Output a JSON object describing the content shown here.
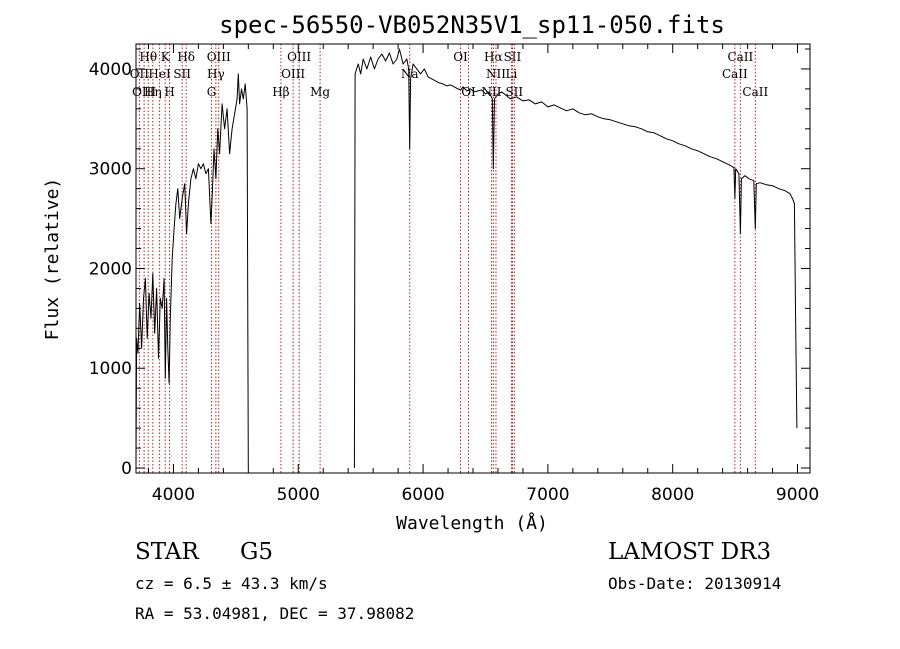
{
  "chart_data": {
    "type": "line",
    "title": "spec-56550-VB052N35V1_sp11-050.fits",
    "xlabel": "Wavelength (Å)",
    "ylabel": "Flux (relative)",
    "xlim": [
      3700,
      9100
    ],
    "ylim": [
      -50,
      4250
    ],
    "xticks": [
      4000,
      5000,
      6000,
      7000,
      8000,
      9000
    ],
    "yticks": [
      0,
      1000,
      2000,
      3000,
      4000
    ],
    "series": [
      {
        "name": "spectrum",
        "segments": [
          [
            [
              3700,
              0
            ],
            [
              3705,
              1300
            ],
            [
              3715,
              1150
            ],
            [
              3730,
              1650
            ],
            [
              3745,
              1200
            ],
            [
              3760,
              1700
            ],
            [
              3775,
              1900
            ],
            [
              3790,
              1300
            ],
            [
              3805,
              1750
            ],
            [
              3820,
              1500
            ],
            [
              3835,
              1950
            ],
            [
              3850,
              1350
            ],
            [
              3865,
              1800
            ],
            [
              3880,
              1100
            ],
            [
              3895,
              1700
            ],
            [
              3910,
              1600
            ],
            [
              3925,
              1900
            ],
            [
              3935,
              900
            ],
            [
              3945,
              1700
            ],
            [
              3955,
              1200
            ],
            [
              3965,
              850
            ],
            [
              3975,
              1500
            ],
            [
              3990,
              2100
            ],
            [
              4005,
              2400
            ],
            [
              4020,
              2650
            ],
            [
              4035,
              2800
            ],
            [
              4050,
              2500
            ],
            [
              4070,
              2700
            ],
            [
              4090,
              2850
            ],
            [
              4105,
              2350
            ],
            [
              4120,
              2650
            ],
            [
              4140,
              2900
            ],
            [
              4160,
              3000
            ],
            [
              4180,
              2900
            ],
            [
              4200,
              3050
            ],
            [
              4220,
              3000
            ],
            [
              4240,
              3050
            ],
            [
              4260,
              2950
            ],
            [
              4280,
              3000
            ],
            [
              4300,
              2450
            ],
            [
              4310,
              2700
            ],
            [
              4325,
              3200
            ],
            [
              4340,
              2900
            ],
            [
              4355,
              3400
            ],
            [
              4370,
              3150
            ],
            [
              4390,
              3650
            ],
            [
              4410,
              3400
            ],
            [
              4430,
              3600
            ],
            [
              4450,
              3150
            ],
            [
              4470,
              3400
            ],
            [
              4490,
              3550
            ],
            [
              4510,
              3700
            ],
            [
              4520,
              3950
            ],
            [
              4530,
              3650
            ],
            [
              4545,
              3800
            ],
            [
              4560,
              3700
            ],
            [
              4575,
              3850
            ],
            [
              4590,
              3600
            ],
            [
              4600,
              0
            ]
          ],
          [
            [
              5450,
              0
            ],
            [
              5455,
              3950
            ],
            [
              5480,
              4050
            ],
            [
              5500,
              3950
            ],
            [
              5520,
              4100
            ],
            [
              5550,
              4000
            ],
            [
              5580,
              4120
            ],
            [
              5610,
              4000
            ],
            [
              5640,
              4100
            ],
            [
              5670,
              4150
            ],
            [
              5700,
              4080
            ],
            [
              5730,
              4160
            ],
            [
              5760,
              4050
            ],
            [
              5790,
              4100
            ],
            [
              5810,
              4200
            ],
            [
              5840,
              4050
            ],
            [
              5870,
              4100
            ],
            [
              5885,
              4000
            ],
            [
              5893,
              3200
            ],
            [
              5900,
              3900
            ],
            [
              5920,
              4050
            ],
            [
              5950,
              4000
            ],
            [
              5980,
              3950
            ],
            [
              6010,
              4000
            ],
            [
              6040,
              3920
            ],
            [
              6070,
              3900
            ],
            [
              6100,
              3880
            ],
            [
              6130,
              3860
            ],
            [
              6160,
              3850
            ],
            [
              6190,
              3830
            ],
            [
              6220,
              3840
            ],
            [
              6250,
              3820
            ],
            [
              6280,
              3800
            ],
            [
              6300,
              3790
            ],
            [
              6320,
              3820
            ],
            [
              6350,
              3780
            ],
            [
              6380,
              3800
            ],
            [
              6410,
              3770
            ],
            [
              6440,
              3780
            ],
            [
              6470,
              3790
            ],
            [
              6500,
              3750
            ],
            [
              6530,
              3770
            ],
            [
              6555,
              3700
            ],
            [
              6563,
              3000
            ],
            [
              6572,
              3700
            ],
            [
              6600,
              3750
            ],
            [
              6630,
              3770
            ],
            [
              6660,
              3740
            ],
            [
              6700,
              3700
            ],
            [
              6750,
              3720
            ],
            [
              6800,
              3680
            ],
            [
              6850,
              3690
            ],
            [
              6900,
              3650
            ],
            [
              6950,
              3670
            ],
            [
              7000,
              3620
            ],
            [
              7050,
              3640
            ],
            [
              7100,
              3610
            ],
            [
              7150,
              3580
            ],
            [
              7200,
              3600
            ],
            [
              7250,
              3560
            ],
            [
              7300,
              3540
            ],
            [
              7350,
              3550
            ],
            [
              7400,
              3520
            ],
            [
              7450,
              3500
            ],
            [
              7500,
              3490
            ],
            [
              7550,
              3470
            ],
            [
              7600,
              3450
            ],
            [
              7650,
              3430
            ],
            [
              7700,
              3420
            ],
            [
              7750,
              3400
            ],
            [
              7800,
              3370
            ],
            [
              7850,
              3360
            ],
            [
              7900,
              3330
            ],
            [
              7950,
              3300
            ],
            [
              8000,
              3280
            ],
            [
              8050,
              3250
            ],
            [
              8100,
              3230
            ],
            [
              8150,
              3200
            ],
            [
              8200,
              3180
            ],
            [
              8250,
              3150
            ],
            [
              8300,
              3120
            ],
            [
              8350,
              3100
            ],
            [
              8400,
              3070
            ],
            [
              8450,
              3040
            ],
            [
              8490,
              3010
            ],
            [
              8498,
              2700
            ],
            [
              8505,
              3000
            ],
            [
              8530,
              2950
            ],
            [
              8542,
              2350
            ],
            [
              8550,
              2900
            ],
            [
              8580,
              2930
            ],
            [
              8610,
              2900
            ],
            [
              8650,
              2880
            ],
            [
              8662,
              2400
            ],
            [
              8670,
              2850
            ],
            [
              8700,
              2860
            ],
            [
              8750,
              2840
            ],
            [
              8800,
              2830
            ],
            [
              8850,
              2800
            ],
            [
              8900,
              2780
            ],
            [
              8940,
              2750
            ],
            [
              8960,
              2700
            ],
            [
              8975,
              2650
            ],
            [
              8985,
              1500
            ],
            [
              8995,
              400
            ]
          ]
        ]
      }
    ],
    "lines": [
      {
        "name": "Hθ",
        "wavelength": 3798,
        "row": 1
      },
      {
        "name": "OII",
        "wavelength": 3727,
        "row": 2
      },
      {
        "name": "OIII",
        "wavelength": 3765,
        "row": 3
      },
      {
        "name": "K",
        "wavelength": 3934,
        "row": 1
      },
      {
        "name": "HeI",
        "wavelength": 3889,
        "row": 2
      },
      {
        "name": "Hη",
        "wavelength": 3835,
        "row": 3
      },
      {
        "name": "Hδ",
        "wavelength": 4102,
        "row": 1
      },
      {
        "name": "SII",
        "wavelength": 4070,
        "row": 2
      },
      {
        "name": "H",
        "wavelength": 3969,
        "row": 3
      },
      {
        "name": "OIII",
        "wavelength": 4363,
        "row": 1
      },
      {
        "name": "Hγ",
        "wavelength": 4340,
        "row": 2
      },
      {
        "name": "G",
        "wavelength": 4305,
        "row": 3
      },
      {
        "name": "Hβ",
        "wavelength": 4861,
        "row": 3
      },
      {
        "name": "OIII",
        "wavelength": 5007,
        "row": 1
      },
      {
        "name": "OIII",
        "wavelength": 4959,
        "row": 2
      },
      {
        "name": "Mg",
        "wavelength": 5175,
        "row": 3
      },
      {
        "name": "Na",
        "wavelength": 5893,
        "row": 2
      },
      {
        "name": "OI",
        "wavelength": 6300,
        "row": 1
      },
      {
        "name": "OI",
        "wavelength": 6364,
        "row": 3
      },
      {
        "name": "Hα",
        "wavelength": 6563,
        "row": 1
      },
      {
        "name": "NII",
        "wavelength": 6584,
        "row": 2
      },
      {
        "name": "NII",
        "wavelength": 6548,
        "row": 3
      },
      {
        "name": "SII",
        "wavelength": 6716,
        "row": 1
      },
      {
        "name": "Li",
        "wavelength": 6708,
        "row": 2
      },
      {
        "name": "SII",
        "wavelength": 6731,
        "row": 3
      },
      {
        "name": "CaII",
        "wavelength": 8542,
        "row": 1
      },
      {
        "name": "CaII",
        "wavelength": 8498,
        "row": 2
      },
      {
        "name": "CaII",
        "wavelength": 8662,
        "row": 3
      }
    ],
    "line_color": "#b22222",
    "spectrum_color": "#000000"
  },
  "info": {
    "class_label": "STAR",
    "subclass": "G5",
    "survey": "LAMOST DR3",
    "cz": "cz = 6.5 ± 43.3 km/s",
    "obs_date": "Obs-Date: 20130914",
    "coords": "RA =  53.04981, DEC =  37.98082"
  }
}
